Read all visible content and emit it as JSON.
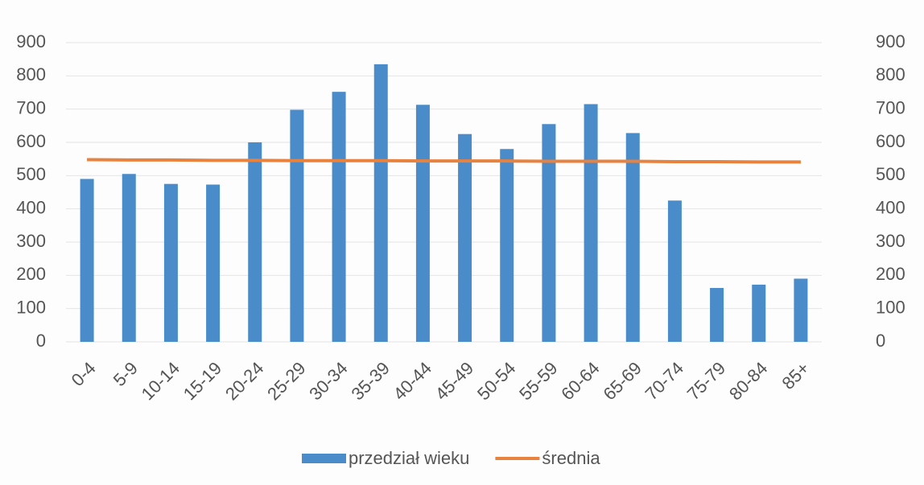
{
  "chart_data": {
    "type": "bar",
    "categories": [
      "0-4",
      "5-9",
      "10-14",
      "15-19",
      "20-24",
      "25-29",
      "30-34",
      "35-39",
      "40-44",
      "45-49",
      "50-54",
      "55-59",
      "60-64",
      "65-69",
      "70-74",
      "75-79",
      "80-84",
      "85+"
    ],
    "series": [
      {
        "name": "przedział wieku",
        "type": "bar",
        "color": "#4a8bc9",
        "values": [
          490,
          505,
          475,
          473,
          600,
          698,
          752,
          835,
          713,
          625,
          580,
          655,
          715,
          628,
          425,
          162,
          172,
          190
        ]
      },
      {
        "name": "średnia",
        "type": "line",
        "axis": "y2",
        "color": "#e8823f",
        "values": [
          548,
          547,
          547,
          546,
          546,
          545,
          545,
          545,
          544,
          544,
          544,
          543,
          543,
          543,
          542,
          542,
          541,
          541
        ]
      }
    ],
    "ylim": [
      0,
      900
    ],
    "yticks": [
      0,
      100,
      200,
      300,
      400,
      500,
      600,
      700,
      800,
      900
    ],
    "y2lim": [
      0,
      900
    ],
    "y2ticks": [
      0,
      100,
      200,
      300,
      400,
      500,
      600,
      700,
      800,
      900
    ],
    "grid": true,
    "legend": "bottom"
  }
}
